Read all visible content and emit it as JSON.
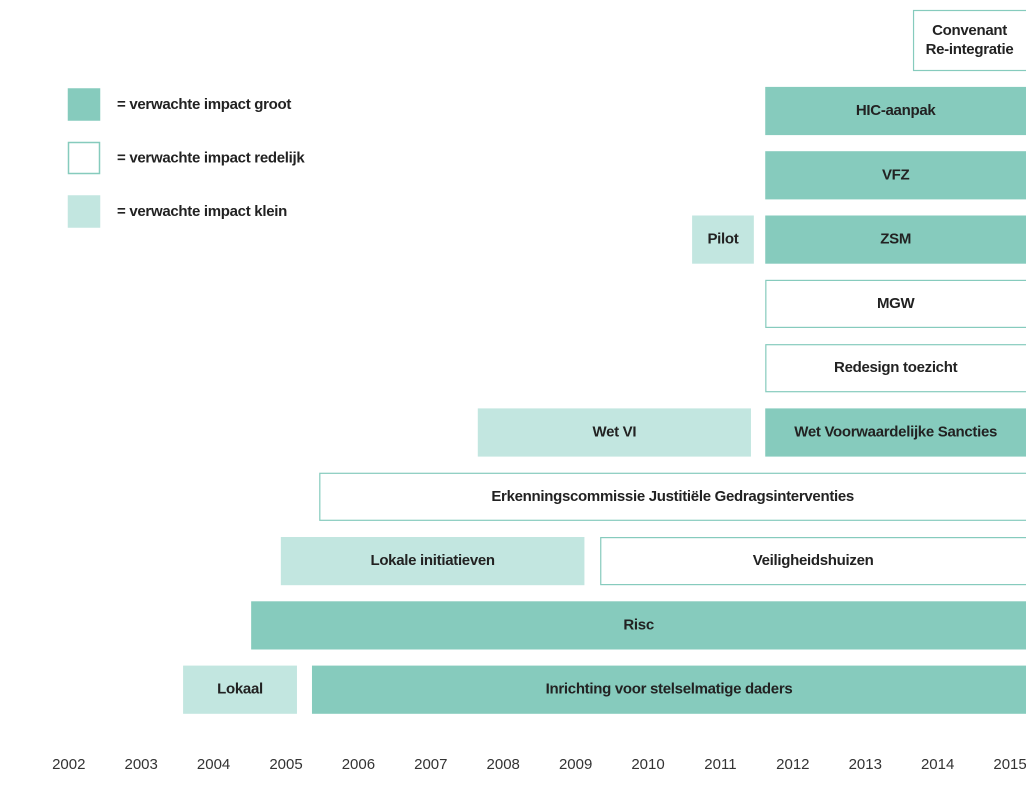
{
  "chart_data": {
    "type": "timeline",
    "xlim": [
      2001.05,
      2015.22
    ],
    "xticks": [
      2002,
      2003,
      2004,
      2005,
      2006,
      2007,
      2008,
      2009,
      2010,
      2011,
      2012,
      2013,
      2014,
      2015
    ],
    "legend": [
      {
        "label": "= verwachte impact groot",
        "fill": "#86cbbd",
        "stroke": "#86cbbd"
      },
      {
        "label": "= verwachte impact redelijk",
        "fill": "#ffffff",
        "stroke": "#86cbbd"
      },
      {
        "label": "= verwachte impact klein",
        "fill": "#c2e6e0",
        "stroke": "#c2e6e0"
      }
    ],
    "rows": [
      {
        "bars": [
          {
            "lines": [
              "Convenant",
              "Re-integratie"
            ],
            "start": 2013.66,
            "end": 2015.5,
            "fill": "#ffffff",
            "stroke": "#86cbbd"
          }
        ]
      },
      {
        "bars": [
          {
            "lines": [
              "HIC-aanpak"
            ],
            "start": 2011.62,
            "end": 2015.5,
            "fill": "#86cbbd",
            "stroke": "#86cbbd"
          }
        ]
      },
      {
        "bars": [
          {
            "lines": [
              "VFZ"
            ],
            "start": 2011.62,
            "end": 2015.5,
            "fill": "#86cbbd",
            "stroke": "#86cbbd"
          }
        ]
      },
      {
        "bars": [
          {
            "lines": [
              "Pilot"
            ],
            "start": 2010.61,
            "end": 2011.46,
            "fill": "#c2e6e0",
            "stroke": "#c2e6e0"
          },
          {
            "lines": [
              "ZSM"
            ],
            "start": 2011.62,
            "end": 2015.5,
            "fill": "#86cbbd",
            "stroke": "#86cbbd"
          }
        ]
      },
      {
        "bars": [
          {
            "lines": [
              "MGW"
            ],
            "start": 2011.62,
            "end": 2015.5,
            "fill": "#ffffff",
            "stroke": "#86cbbd"
          }
        ]
      },
      {
        "bars": [
          {
            "lines": [
              "Redesign toezicht"
            ],
            "start": 2011.62,
            "end": 2015.5,
            "fill": "#ffffff",
            "stroke": "#86cbbd"
          }
        ]
      },
      {
        "bars": [
          {
            "lines": [
              "Wet VI"
            ],
            "start": 2007.65,
            "end": 2011.42,
            "fill": "#c2e6e0",
            "stroke": "#c2e6e0"
          },
          {
            "lines": [
              "Wet Voorwaardelijke Sancties"
            ],
            "start": 2011.62,
            "end": 2015.5,
            "fill": "#86cbbd",
            "stroke": "#86cbbd"
          }
        ]
      },
      {
        "bars": [
          {
            "lines": [
              "Erkenningscommissie Justitiële Gedragsinterventies"
            ],
            "start": 2005.46,
            "end": 2015.5,
            "fill": "#ffffff",
            "stroke": "#86cbbd"
          }
        ]
      },
      {
        "bars": [
          {
            "lines": [
              "Lokale initiatieven"
            ],
            "start": 2004.93,
            "end": 2009.12,
            "fill": "#c2e6e0",
            "stroke": "#c2e6e0"
          },
          {
            "lines": [
              "Veiligheidshuizen"
            ],
            "start": 2009.34,
            "end": 2015.5,
            "fill": "#ffffff",
            "stroke": "#86cbbd"
          }
        ]
      },
      {
        "bars": [
          {
            "lines": [
              "Risc"
            ],
            "start": 2004.52,
            "end": 2015.5,
            "fill": "#86cbbd",
            "stroke": "#86cbbd"
          }
        ]
      },
      {
        "bars": [
          {
            "lines": [
              "Lokaal"
            ],
            "start": 2003.58,
            "end": 2005.15,
            "fill": "#c2e6e0",
            "stroke": "#c2e6e0"
          },
          {
            "lines": [
              "Inrichting voor stelselmatige daders"
            ],
            "start": 2005.36,
            "end": 2015.5,
            "fill": "#86cbbd",
            "stroke": "#86cbbd"
          }
        ]
      }
    ]
  }
}
